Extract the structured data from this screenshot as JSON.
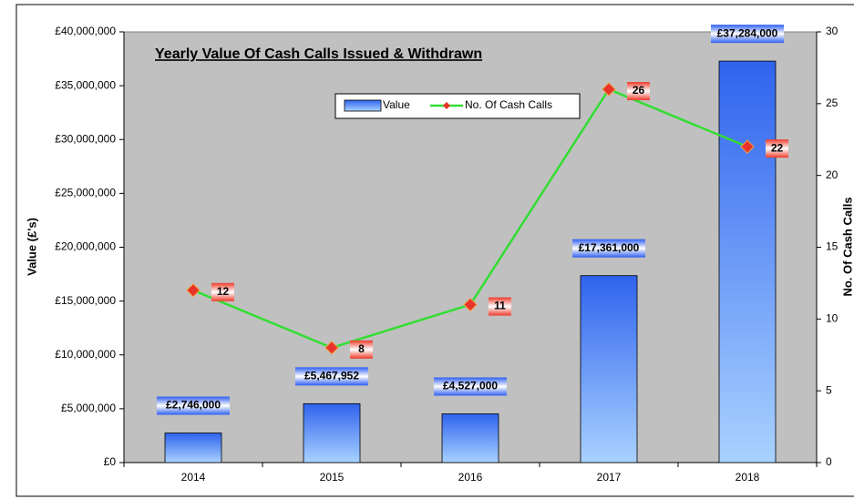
{
  "chart_data": {
    "type": "bar",
    "title": "Yearly Value Of Cash Calls Issued & Withdrawn",
    "y_label": "Value (£'s)",
    "y2_label": "No. Of Cash Calls",
    "categories": [
      "2014",
      "2015",
      "2016",
      "2017",
      "2018"
    ],
    "series": [
      {
        "name": "Value",
        "type": "bar",
        "color": "#3f6ff0",
        "values": [
          2746000,
          5467952,
          4527000,
          17361000,
          37284000
        ],
        "value_labels": [
          "£2,746,000",
          "£5,467,952",
          "£4,527,000",
          "£17,361,000",
          "£37,284,000"
        ]
      },
      {
        "name": "No. Of Cash Calls",
        "type": "line",
        "axis": "y2",
        "color": "#33dd33",
        "marker_color": "#e8332a",
        "values": [
          12,
          8,
          11,
          26,
          22
        ]
      }
    ],
    "ylim": [
      0,
      40000000
    ],
    "yticks": [
      {
        "value": 0,
        "label": "£0"
      },
      {
        "value": 5000000,
        "label": "£5,000,000"
      },
      {
        "value": 10000000,
        "label": "£10,000,000"
      },
      {
        "value": 15000000,
        "label": "£15,000,000"
      },
      {
        "value": 20000000,
        "label": "£20,000,000"
      },
      {
        "value": 25000000,
        "label": "£25,000,000"
      },
      {
        "value": 30000000,
        "label": "£30,000,000"
      },
      {
        "value": 35000000,
        "label": "£35,000,000"
      },
      {
        "value": 40000000,
        "label": "£40,000,000"
      }
    ],
    "y2lim": [
      0,
      30
    ],
    "y2ticks": [
      0,
      5,
      10,
      15,
      20,
      25,
      30
    ],
    "grid": false
  }
}
